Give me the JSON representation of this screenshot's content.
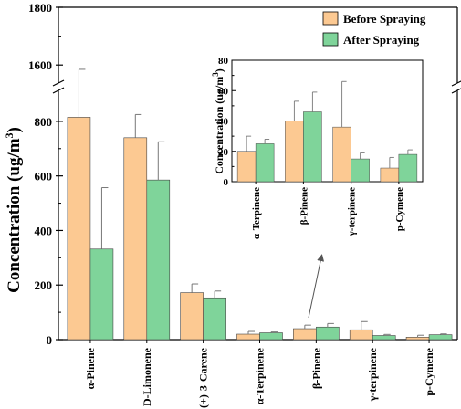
{
  "chart_data": [
    {
      "type": "bar",
      "ylabel": "Concentration (ug/m³)",
      "ylabel_main": "Concentration (ug/m",
      "ylabel_sup": "3",
      "ylabel_close": ")",
      "categories": [
        "α-Pinene",
        "D-Limonene",
        "(+)-3-Carene",
        "α-Terpinene",
        "β-Pinene",
        "γ-terpinene",
        "p-Cymene"
      ],
      "series": [
        {
          "name": "Before Spraying",
          "color": "#fcc992",
          "values": [
            815,
            740,
            172,
            20,
            40,
            36,
            9
          ],
          "errors": [
            770,
            85,
            32,
            10,
            13,
            30,
            7
          ]
        },
        {
          "name": "After Spraying",
          "color": "#7fd49a",
          "values": [
            332,
            585,
            153,
            25,
            46,
            15,
            18
          ],
          "errors": [
            225,
            140,
            25,
            3,
            13,
            4,
            3
          ]
        }
      ],
      "y_axis": {
        "broken": true,
        "lower_range": [
          0,
          900
        ],
        "upper_range": [
          1550,
          1800
        ]
      },
      "y_ticks": [
        "0",
        "200",
        "400",
        "600",
        "800",
        "1600",
        "1800"
      ],
      "legend": {
        "placement": "top-right",
        "entries": [
          "Before Spraying",
          "After Spraying"
        ]
      }
    },
    {
      "type": "bar",
      "role": "inset",
      "ylabel": "Concentration (ug/m³)",
      "ylabel_main": "Concentration (ug/m",
      "ylabel_sup": "3",
      "ylabel_close": ")",
      "categories": [
        "α-Terpinene",
        "β-Pinene",
        "γ-terpinene",
        "p-Cymene"
      ],
      "series": [
        {
          "name": "Before Spraying",
          "color": "#fcc992",
          "values": [
            20,
            40,
            36,
            9
          ],
          "errors": [
            10,
            13,
            30,
            7
          ]
        },
        {
          "name": "After Spraying",
          "color": "#7fd49a",
          "values": [
            25,
            46,
            15,
            18
          ],
          "errors": [
            3,
            13,
            4,
            3
          ]
        }
      ],
      "ylim": [
        0,
        80
      ],
      "y_ticks": [
        "0",
        "20",
        "40",
        "60",
        "80"
      ]
    }
  ]
}
